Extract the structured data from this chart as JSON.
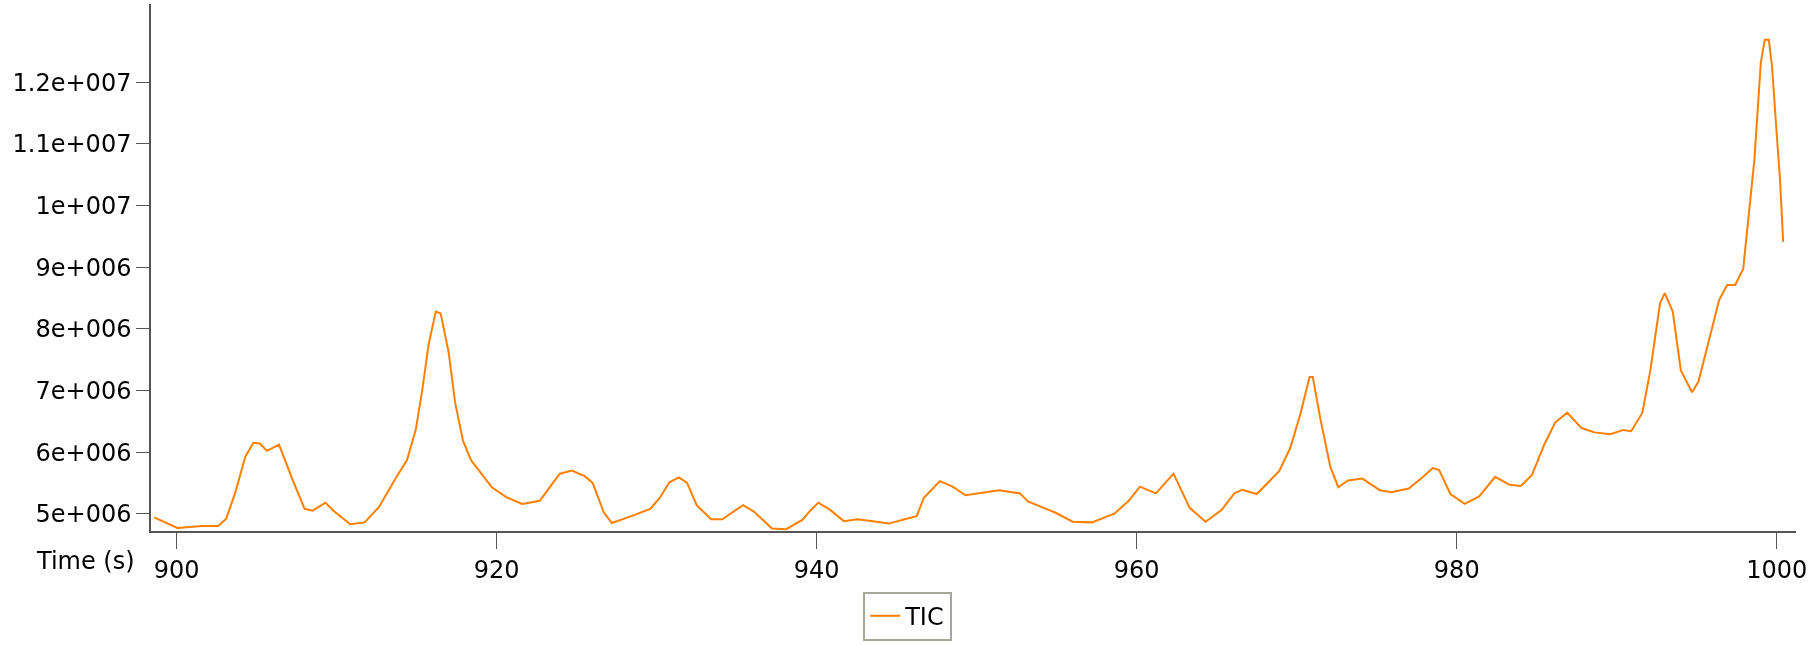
{
  "chart_data": {
    "type": "line",
    "xlabel": "Time (s)",
    "xlim": [
      898.4,
      1001.2
    ],
    "xticks": [
      900,
      920,
      940,
      960,
      980,
      1000
    ],
    "ylim": [
      4720000,
      13270000
    ],
    "yticks": [
      {
        "value": 5000000,
        "label": "5e+006"
      },
      {
        "value": 6000000,
        "label": "6e+006"
      },
      {
        "value": 7000000,
        "label": "7e+006"
      },
      {
        "value": 8000000,
        "label": "8e+006"
      },
      {
        "value": 9000000,
        "label": "9e+006"
      },
      {
        "value": 10000000,
        "label": "1e+007"
      },
      {
        "value": 11000000,
        "label": "1.1e+007"
      },
      {
        "value": 12000000,
        "label": "1.2e+007"
      }
    ],
    "legend": "bottom",
    "marker": "none",
    "line_style": "solid",
    "series": [
      {
        "name": "TIC",
        "color": "#ff8000",
        "x": [
          898.6,
          900.05,
          901.6,
          902.6,
          903.1,
          903.65,
          904.3,
          904.8,
          905.2,
          905.65,
          906.4,
          907.25,
          908.0,
          908.5,
          909.3,
          909.8,
          910.85,
          911.75,
          912.65,
          913.7,
          914.4,
          914.95,
          915.35,
          915.75,
          916.2,
          916.5,
          917.0,
          917.4,
          917.9,
          918.4,
          919.7,
          920.6,
          921.6,
          922.7,
          923.4,
          923.95,
          924.7,
          925.5,
          926.0,
          926.7,
          927.2,
          928.5,
          929.6,
          930.2,
          930.8,
          931.4,
          931.9,
          932.5,
          933.4,
          934.1,
          935.4,
          936.1,
          937.2,
          938.1,
          939.1,
          939.6,
          940.1,
          940.8,
          941.7,
          942.55,
          943.5,
          944.5,
          945.5,
          946.25,
          946.7,
          947.7,
          948.5,
          949.3,
          951.4,
          952.7,
          953.2,
          954.9,
          956.0,
          957.2,
          958.6,
          959.5,
          960.2,
          961.2,
          962.3,
          963.3,
          964.3,
          965.3,
          966.1,
          966.6,
          967.5,
          968.9,
          969.6,
          970.25,
          970.8,
          971.0,
          971.5,
          972.1,
          972.6,
          973.2,
          974.1,
          975.2,
          975.9,
          977.0,
          977.9,
          978.5,
          978.9,
          979.6,
          980.5,
          981.4,
          982.4,
          983.3,
          984.0,
          984.7,
          985.5,
          986.15,
          986.9,
          987.8,
          988.6,
          989.6,
          990.4,
          990.9,
          991.6,
          992.1,
          992.7,
          993.0,
          993.5,
          994.0,
          994.7,
          995.1,
          995.6,
          996.4,
          996.9,
          997.4,
          997.9,
          998.6,
          999.0,
          999.25,
          999.5,
          999.7,
          999.99,
          1000.2,
          1000.4
        ],
        "values": [
          4940000,
          4770000,
          4800000,
          4800000,
          4920000,
          5330000,
          5930000,
          6150000,
          6140000,
          6020000,
          6120000,
          5550000,
          5080000,
          5050000,
          5180000,
          5050000,
          4830000,
          4860000,
          5110000,
          5580000,
          5870000,
          6370000,
          7000000,
          7750000,
          8280000,
          8250000,
          7620000,
          6810000,
          6180000,
          5870000,
          5430000,
          5270000,
          5160000,
          5210000,
          5460000,
          5650000,
          5700000,
          5610000,
          5500000,
          5020000,
          4850000,
          4970000,
          5080000,
          5260000,
          5510000,
          5590000,
          5500000,
          5140000,
          4910000,
          4910000,
          5140000,
          5030000,
          4760000,
          4750000,
          4900000,
          5050000,
          5180000,
          5070000,
          4880000,
          4910000,
          4880000,
          4840000,
          4910000,
          4960000,
          5260000,
          5530000,
          5440000,
          5300000,
          5380000,
          5330000,
          5200000,
          5020000,
          4870000,
          4860000,
          5000000,
          5210000,
          5440000,
          5330000,
          5650000,
          5100000,
          4870000,
          5060000,
          5330000,
          5390000,
          5320000,
          5690000,
          6070000,
          6640000,
          7220000,
          7220000,
          6510000,
          5760000,
          5430000,
          5540000,
          5570000,
          5380000,
          5350000,
          5410000,
          5600000,
          5740000,
          5710000,
          5320000,
          5160000,
          5280000,
          5600000,
          5470000,
          5450000,
          5630000,
          6140000,
          6480000,
          6640000,
          6390000,
          6320000,
          6290000,
          6360000,
          6340000,
          6640000,
          7330000,
          8410000,
          8580000,
          8280000,
          7330000,
          6970000,
          7140000,
          7650000,
          8470000,
          8710000,
          8710000,
          8970000,
          10740000,
          12320000,
          12690000,
          12690000,
          12260000,
          11180000,
          10420000,
          9410000
        ]
      }
    ]
  }
}
